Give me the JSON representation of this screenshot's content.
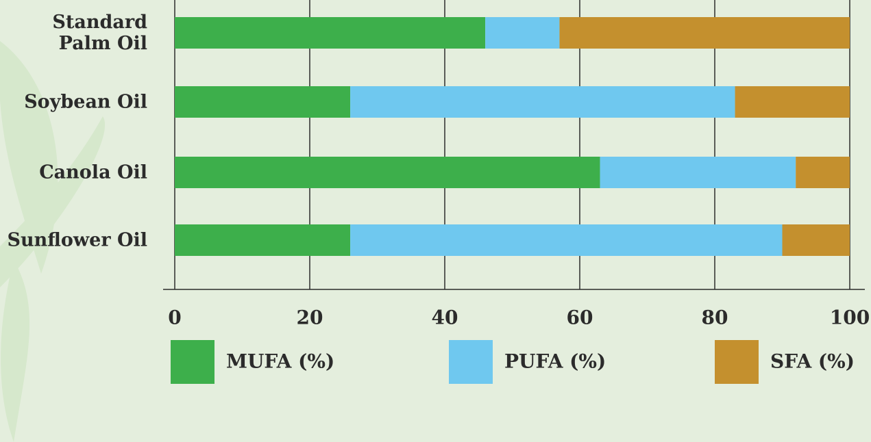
{
  "chart_data": {
    "type": "stacked-bar",
    "categories": [
      "Standard\nPalm Oil",
      "Soybean Oil",
      "Canola Oil",
      "Sunflower Oil"
    ],
    "series": [
      {
        "name": "MUFA (%)",
        "color": "#3daf4b",
        "values": [
          46,
          26,
          63,
          26
        ]
      },
      {
        "name": "PUFA (%)",
        "color": "#6fc8ef",
        "values": [
          11,
          57,
          29,
          64
        ]
      },
      {
        "name": "SFA (%)",
        "color": "#c4902e",
        "values": [
          43,
          17,
          8,
          10
        ]
      }
    ],
    "xlim": [
      0,
      100
    ],
    "xticks": [
      0,
      20,
      40,
      60,
      80,
      100
    ],
    "grid": true
  }
}
